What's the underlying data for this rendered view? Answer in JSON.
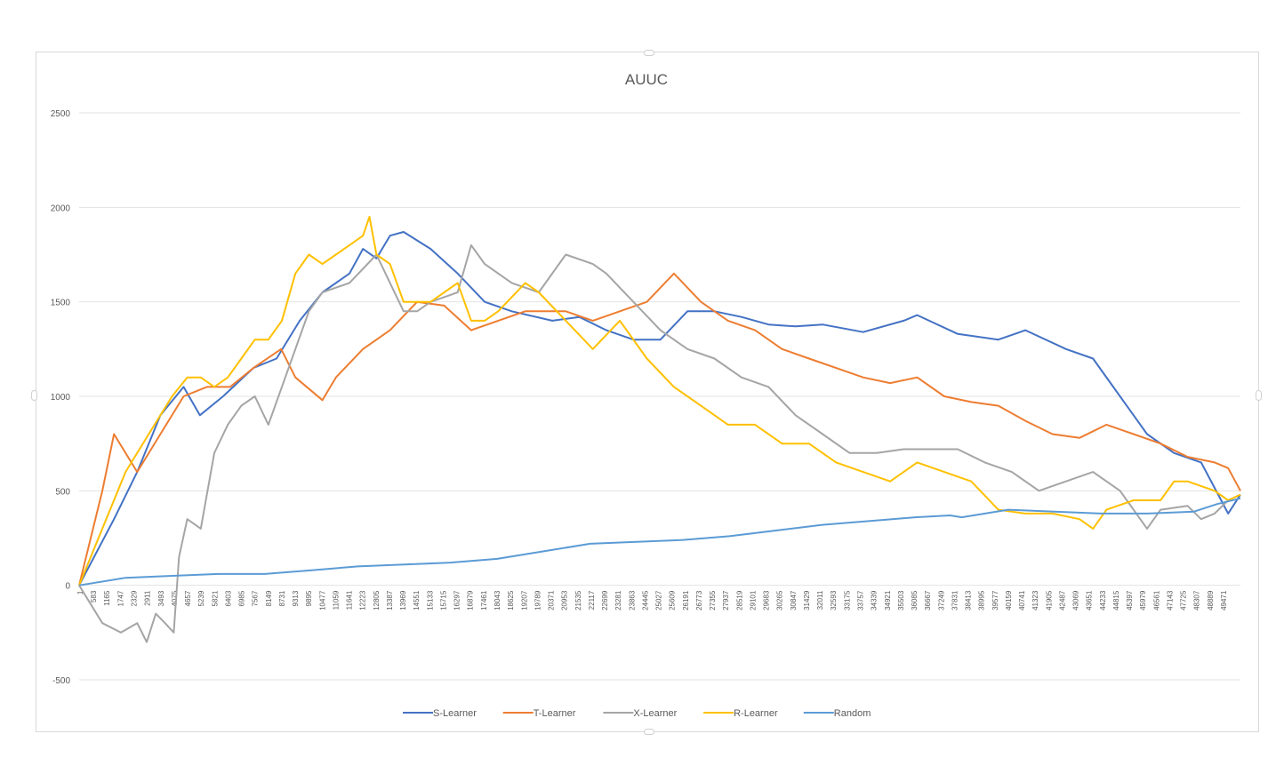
{
  "chart_data": {
    "type": "line",
    "title": "AUUC",
    "xlabel": "",
    "ylabel": "",
    "ylim": [
      -500,
      2500
    ],
    "yticks": [
      "2500",
      "2000",
      "1500",
      "1000",
      "500",
      "0",
      "-500"
    ],
    "ytick_values": [
      2500,
      2000,
      1500,
      1000,
      500,
      0,
      -500
    ],
    "xlim": [
      1,
      50000
    ],
    "x_tick_labels": [
      "1",
      "583",
      "1165",
      "1747",
      "2329",
      "2911",
      "3493",
      "4075",
      "4657",
      "5239",
      "5821",
      "6403",
      "6985",
      "7567",
      "8149",
      "8731",
      "9313",
      "9895",
      "10477",
      "11059",
      "11641",
      "12223",
      "12805",
      "13387",
      "13969",
      "14551",
      "15133",
      "15715",
      "16297",
      "16879",
      "17461",
      "18043",
      "18625",
      "19207",
      "19789",
      "20371",
      "20953",
      "21535",
      "22117",
      "22699",
      "23281",
      "23863",
      "24445",
      "25027",
      "25609",
      "26191",
      "26773",
      "27355",
      "27937",
      "28519",
      "29101",
      "29683",
      "30265",
      "30847",
      "31429",
      "32011",
      "32593",
      "33175",
      "33757",
      "34339",
      "34921",
      "35503",
      "36085",
      "36667",
      "37249",
      "37831",
      "38413",
      "38995",
      "39577",
      "40159",
      "40741",
      "41323",
      "41905",
      "42487",
      "43069",
      "43651",
      "44233",
      "44815",
      "45397",
      "45979",
      "46561",
      "47143",
      "47725",
      "48307",
      "48889",
      "49471"
    ],
    "grid": true,
    "legend_position": "bottom",
    "series": [
      {
        "name": "S-Learner",
        "color": "#4472c4",
        "x": [
          1,
          1500,
          2500,
          3500,
          4500,
          5200,
          6200,
          7500,
          8500,
          9500,
          10477,
          11641,
          12223,
          12805,
          13387,
          13969,
          15133,
          16297,
          17461,
          18625,
          20371,
          21535,
          22699,
          23863,
          25027,
          26191,
          27355,
          28519,
          29683,
          30847,
          32011,
          33757,
          35503,
          36085,
          37831,
          39577,
          40741,
          42487,
          43651,
          44815,
          45979,
          47143,
          48307,
          49471,
          50000
        ],
        "y": [
          0,
          350,
          600,
          900,
          1050,
          900,
          1000,
          1150,
          1200,
          1400,
          1550,
          1650,
          1780,
          1730,
          1850,
          1870,
          1780,
          1650,
          1500,
          1450,
          1400,
          1420,
          1350,
          1300,
          1300,
          1450,
          1450,
          1420,
          1380,
          1370,
          1380,
          1340,
          1400,
          1430,
          1330,
          1300,
          1350,
          1250,
          1200,
          1000,
          800,
          700,
          650,
          380,
          480
        ]
      },
      {
        "name": "T-Learner",
        "color": "#ed7d31",
        "x": [
          1,
          1000,
          1500,
          2500,
          3500,
          4500,
          5500,
          6500,
          7500,
          8700,
          9313,
          10477,
          11059,
          12223,
          13387,
          14551,
          15715,
          16879,
          18043,
          19207,
          20953,
          22117,
          23281,
          24445,
          25609,
          26773,
          27937,
          29101,
          30265,
          31429,
          32593,
          33757,
          34921,
          36085,
          37249,
          38413,
          39577,
          40741,
          41905,
          43069,
          44233,
          45397,
          46561,
          47725,
          48889,
          49471,
          50000
        ],
        "y": [
          0,
          500,
          800,
          600,
          800,
          1000,
          1050,
          1050,
          1150,
          1250,
          1100,
          980,
          1100,
          1250,
          1350,
          1500,
          1480,
          1350,
          1400,
          1450,
          1450,
          1400,
          1450,
          1500,
          1650,
          1500,
          1400,
          1350,
          1250,
          1200,
          1150,
          1100,
          1070,
          1100,
          1000,
          970,
          950,
          870,
          800,
          780,
          850,
          800,
          750,
          680,
          650,
          620,
          500
        ]
      },
      {
        "name": "X-Learner",
        "color": "#a5a5a5",
        "x": [
          1,
          1000,
          1800,
          2500,
          2911,
          3300,
          3700,
          4075,
          4300,
          4657,
          5239,
          5821,
          6403,
          6985,
          7567,
          8149,
          8731,
          9313,
          9895,
          10477,
          11641,
          12805,
          13387,
          13969,
          14551,
          15133,
          16297,
          16879,
          17461,
          18625,
          19789,
          20953,
          22117,
          22699,
          23863,
          25027,
          26191,
          27355,
          28519,
          29683,
          30847,
          32011,
          33175,
          34339,
          35503,
          36667,
          37831,
          38995,
          40159,
          41323,
          42487,
          43651,
          44815,
          45397,
          45979,
          46561,
          47725,
          48307,
          48889,
          49471,
          50000
        ],
        "y": [
          0,
          -200,
          -250,
          -200,
          -300,
          -150,
          -200,
          -250,
          150,
          350,
          300,
          700,
          850,
          950,
          1000,
          850,
          1050,
          1250,
          1450,
          1550,
          1600,
          1750,
          1600,
          1450,
          1450,
          1500,
          1550,
          1800,
          1700,
          1600,
          1550,
          1750,
          1700,
          1650,
          1500,
          1350,
          1250,
          1200,
          1100,
          1050,
          900,
          800,
          700,
          700,
          720,
          720,
          720,
          650,
          600,
          500,
          550,
          600,
          500,
          400,
          300,
          400,
          420,
          350,
          380,
          450,
          480
        ]
      },
      {
        "name": "R-Learner",
        "color": "#ffc000",
        "x": [
          1,
          1000,
          2000,
          3000,
          4000,
          4657,
          5239,
          5821,
          6403,
          6985,
          7567,
          8149,
          8731,
          9313,
          9895,
          10477,
          11059,
          11641,
          12223,
          12500,
          12805,
          13387,
          13969,
          14551,
          15133,
          16297,
          16879,
          17461,
          18043,
          19207,
          19789,
          20953,
          22117,
          23281,
          24445,
          25609,
          26773,
          27937,
          29101,
          30265,
          31429,
          32593,
          33757,
          34921,
          36085,
          37249,
          38413,
          39577,
          40741,
          41905,
          43069,
          43651,
          44233,
          45397,
          46561,
          47143,
          47725,
          48889,
          49471,
          50000
        ],
        "y": [
          0,
          300,
          600,
          800,
          1000,
          1100,
          1100,
          1050,
          1100,
          1200,
          1300,
          1300,
          1400,
          1650,
          1750,
          1700,
          1750,
          1800,
          1850,
          1950,
          1750,
          1700,
          1500,
          1500,
          1500,
          1600,
          1400,
          1400,
          1450,
          1600,
          1550,
          1400,
          1250,
          1400,
          1200,
          1050,
          950,
          850,
          850,
          750,
          750,
          650,
          600,
          550,
          650,
          600,
          550,
          400,
          380,
          380,
          350,
          300,
          400,
          450,
          450,
          550,
          550,
          500,
          450,
          480
        ]
      },
      {
        "name": "Random",
        "color": "#5b9bd5",
        "x": [
          1,
          2000,
          4000,
          6000,
          8000,
          10000,
          12000,
          14000,
          16000,
          18000,
          20000,
          22000,
          24000,
          26000,
          28000,
          30000,
          32000,
          34000,
          36000,
          37500,
          38000,
          39000,
          40000,
          42000,
          44000,
          46000,
          48000,
          49000,
          50000
        ],
        "y": [
          0,
          40,
          50,
          60,
          60,
          80,
          100,
          110,
          120,
          140,
          180,
          220,
          230,
          240,
          260,
          290,
          320,
          340,
          360,
          370,
          360,
          380,
          400,
          390,
          380,
          380,
          390,
          430,
          460
        ]
      }
    ]
  }
}
